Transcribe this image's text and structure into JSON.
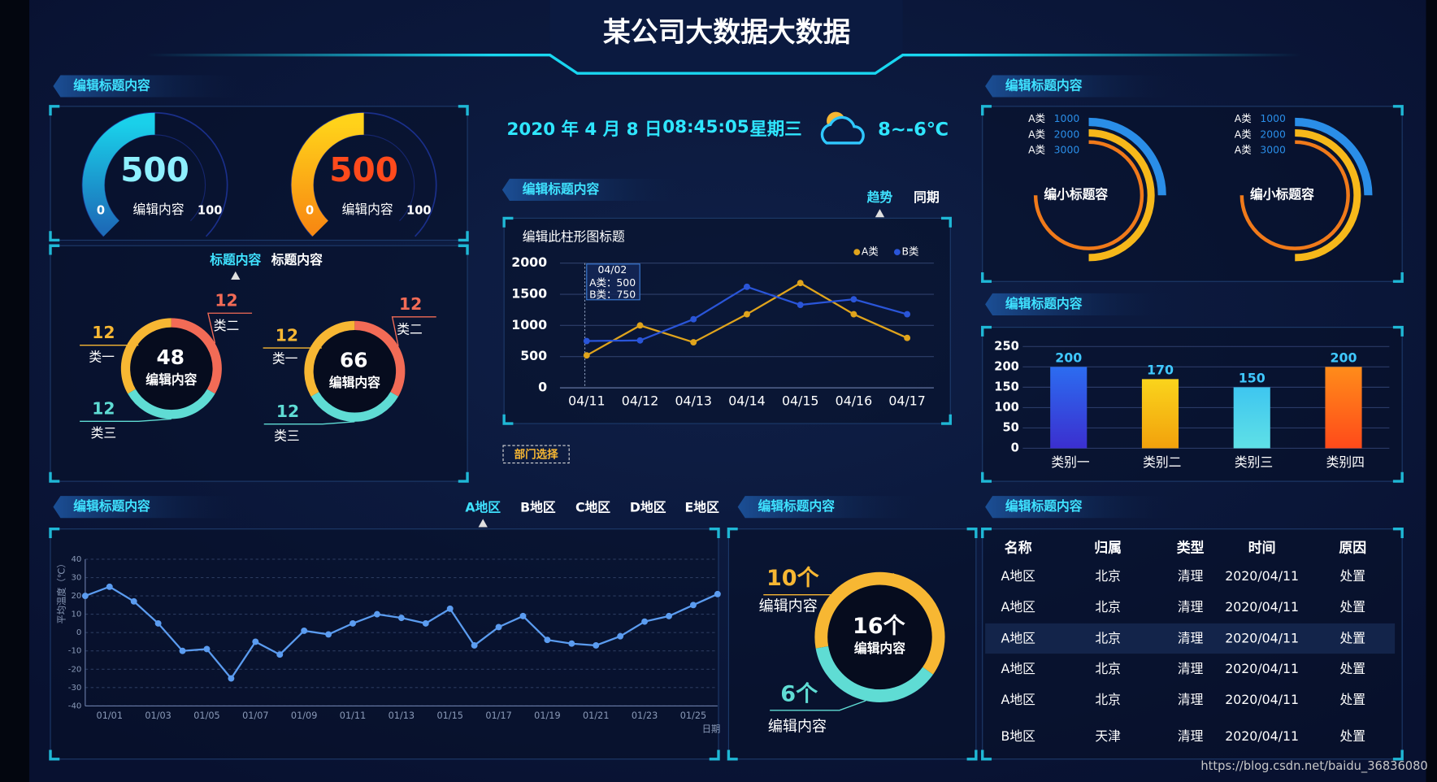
{
  "header": {
    "title": "某公司大数据大数据",
    "date": "2020 年 4 月 8 日",
    "time": "08:45:05",
    "weekday": "星期三",
    "temperature": "8~-6℃"
  },
  "panel_titles": [
    "编辑标题内容",
    "编辑标题内容",
    "编辑标题内容",
    "编辑标题内容",
    "编辑标题内容",
    "编辑标题内容",
    "编辑标题内容"
  ],
  "donut_tabs": {
    "items": [
      "标题内容",
      "标题内容"
    ],
    "active": 0
  },
  "trend_tabs": {
    "items": [
      "趋势",
      "同期"
    ],
    "active": 0
  },
  "department_button": "部门选择",
  "region_tabs": {
    "items": [
      "A地区",
      "B地区",
      "C地区",
      "D地区",
      "E地区"
    ],
    "active": 0
  },
  "table": {
    "columns": [
      "名称",
      "归属",
      "类型",
      "时间",
      "原因"
    ],
    "rows": [
      [
        "A地区",
        "北京",
        "清理",
        "2020/04/11",
        "处置"
      ],
      [
        "A地区",
        "北京",
        "清理",
        "2020/04/11",
        "处置"
      ],
      [
        "A地区",
        "北京",
        "清理",
        "2020/04/11",
        "处置"
      ],
      [
        "A地区",
        "北京",
        "清理",
        "2020/04/11",
        "处置"
      ],
      [
        "A地区",
        "北京",
        "清理",
        "2020/04/11",
        "处置"
      ],
      [
        "B地区",
        "天津",
        "清理",
        "2020/04/11",
        "处置"
      ]
    ],
    "selected_row": 2
  },
  "watermark": "https://blog.csdn.net/baidu_36836080",
  "chart_data": [
    {
      "type": "gauge",
      "values": [
        50
      ],
      "ylim": [
        0,
        100
      ],
      "yticks": [
        0,
        100
      ],
      "center_text": "500",
      "label": "编辑内容",
      "colors": [
        "#1ad0ea",
        "#1c6cb8"
      ],
      "text_color": "#8ef0ff"
    },
    {
      "type": "gauge",
      "values": [
        50
      ],
      "ylim": [
        0,
        100
      ],
      "yticks": [
        0,
        100
      ],
      "center_text": "500",
      "label": "编辑内容",
      "colors": [
        "#ffd21a",
        "#f88a12"
      ],
      "text_color": "#ff4a1c"
    },
    {
      "type": "donut",
      "center_value": 48,
      "center_label": "编辑内容",
      "categories": [
        "类一",
        "类二",
        "类三"
      ],
      "values": [
        12,
        12,
        12
      ],
      "colors": [
        "#f7b733",
        "#f26b56",
        "#5fdcd4"
      ]
    },
    {
      "type": "donut",
      "center_value": 66,
      "center_label": "编辑内容",
      "categories": [
        "类一",
        "类二",
        "类三"
      ],
      "values": [
        12,
        12,
        12
      ],
      "colors": [
        "#f7b733",
        "#f26b56",
        "#5fdcd4"
      ]
    },
    {
      "type": "line",
      "title": "编辑此柱形图标题",
      "x": [
        "04/11",
        "04/12",
        "04/13",
        "04/14",
        "04/15",
        "04/16",
        "04/17"
      ],
      "series": [
        {
          "name": "A类",
          "color": "#e0a41c",
          "values": [
            520,
            1000,
            730,
            1180,
            1680,
            1180,
            800
          ]
        },
        {
          "name": "B类",
          "color": "#2a55d8",
          "values": [
            750,
            760,
            1100,
            1620,
            1330,
            1420,
            1180
          ]
        }
      ],
      "ylim": [
        0,
        2000
      ],
      "yticks": [
        0,
        500,
        1000,
        1500,
        2000
      ],
      "grid": true,
      "tooltip": {
        "title": "04/02",
        "lines": [
          "A类：500",
          "B类：750"
        ]
      }
    },
    {
      "type": "radial-bar",
      "title": "编小标题容",
      "categories": [
        "A类",
        "A类",
        "A类"
      ],
      "values": [
        1000,
        2000,
        3000
      ],
      "colors": [
        "#2a8ee8",
        "#f6b81a",
        "#f07a1a"
      ]
    },
    {
      "type": "radial-bar",
      "title": "编小标题容",
      "categories": [
        "A类",
        "A类",
        "A类"
      ],
      "values": [
        1000,
        2000,
        3000
      ],
      "colors": [
        "#2a8ee8",
        "#f6b81a",
        "#f07a1a"
      ]
    },
    {
      "type": "bar",
      "categories": [
        "类别一",
        "类别二",
        "类别三",
        "类别四"
      ],
      "values": [
        200,
        170,
        150,
        200
      ],
      "colors": [
        [
          "#2c6cf0",
          "#3b2fcf"
        ],
        [
          "#fad41c",
          "#f2a10c"
        ],
        [
          "#3ec6f0",
          "#5fe0e6"
        ],
        [
          "#ff8c1a",
          "#ff4a1a"
        ]
      ],
      "label_color": "#3fc8ff",
      "ylim": [
        0,
        250
      ],
      "yticks": [
        0,
        50,
        100,
        150,
        200,
        250
      ],
      "grid": true
    },
    {
      "type": "line",
      "x": [
        null,
        "01/01",
        null,
        "01/03",
        null,
        "01/05",
        null,
        "01/07",
        null,
        "01/09",
        null,
        "01/11",
        null,
        "01/13",
        null,
        "01/15",
        null,
        "01/17",
        null,
        "01/19",
        null,
        "01/21",
        null,
        "01/23",
        null,
        "01/25",
        null
      ],
      "values": [
        20,
        25,
        17,
        5,
        -10,
        -9,
        -25,
        -5,
        -12,
        1,
        -1,
        5,
        10,
        8,
        5,
        13,
        -7,
        3,
        9,
        -4,
        -6,
        -7,
        -2,
        6,
        9,
        15,
        21
      ],
      "color": "#5b9cf0",
      "ylim": [
        -40,
        40
      ],
      "yticks": [
        -40,
        -30,
        -20,
        -10,
        0,
        10,
        20,
        30,
        40
      ],
      "grid": true,
      "xlabel": "日期",
      "ylabel": "平均温度（℃）"
    },
    {
      "type": "donut",
      "center_text": "16个",
      "center_label": "编辑内容",
      "categories": [
        "编辑内容",
        "编辑内容"
      ],
      "values": [
        10,
        6
      ],
      "value_labels": [
        "10个",
        "6个"
      ],
      "colors": [
        "#f7b733",
        "#5fdcd4"
      ]
    }
  ]
}
